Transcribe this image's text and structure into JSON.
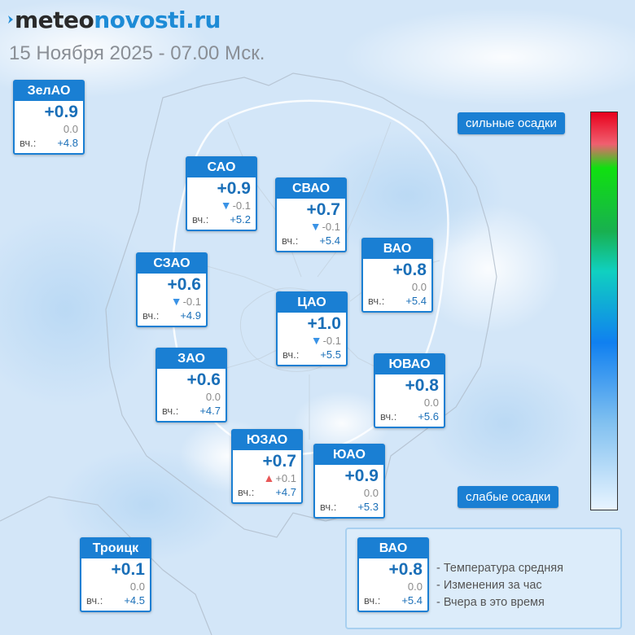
{
  "header": {
    "logo_part1": "meteo",
    "logo_part2": "novosti.ru",
    "date": "15 Ноября 2025 - 07.00 Мск."
  },
  "yesterday_prefix": "вч.:",
  "districts": [
    {
      "id": "zelao",
      "name": "ЗелАО",
      "temp": "+0.9",
      "change": "0.0",
      "trend": "none",
      "yesterday": "+4.8"
    },
    {
      "id": "sao",
      "name": "САО",
      "temp": "+0.9",
      "change": "-0.1",
      "trend": "down",
      "yesterday": "+5.2"
    },
    {
      "id": "svao",
      "name": "СВАО",
      "temp": "+0.7",
      "change": "-0.1",
      "trend": "down",
      "yesterday": "+5.4"
    },
    {
      "id": "vao",
      "name": "ВАО",
      "temp": "+0.8",
      "change": "0.0",
      "trend": "none",
      "yesterday": "+5.4"
    },
    {
      "id": "szao",
      "name": "СЗАО",
      "temp": "+0.6",
      "change": "-0.1",
      "trend": "down",
      "yesterday": "+4.9"
    },
    {
      "id": "cao",
      "name": "ЦАО",
      "temp": "+1.0",
      "change": "-0.1",
      "trend": "down",
      "yesterday": "+5.5"
    },
    {
      "id": "zao",
      "name": "ЗАО",
      "temp": "+0.6",
      "change": "0.0",
      "trend": "none",
      "yesterday": "+4.7"
    },
    {
      "id": "yuvao",
      "name": "ЮВАО",
      "temp": "+0.8",
      "change": "0.0",
      "trend": "none",
      "yesterday": "+5.6"
    },
    {
      "id": "yuzao",
      "name": "ЮЗАО",
      "temp": "+0.7",
      "change": "+0.1",
      "trend": "up",
      "yesterday": "+4.7"
    },
    {
      "id": "yuao",
      "name": "ЮАО",
      "temp": "+0.9",
      "change": "0.0",
      "trend": "none",
      "yesterday": "+5.3"
    },
    {
      "id": "troitsk",
      "name": "Троицк",
      "temp": "+0.1",
      "change": "0.0",
      "trend": "none",
      "yesterday": "+4.5"
    }
  ],
  "precip_scale": {
    "top_label": "сильные осадки",
    "bottom_label": "слабые осадки"
  },
  "legend": {
    "sample": {
      "name": "ВАО",
      "temp": "+0.8",
      "change": "0.0",
      "trend": "none",
      "yesterday": "+5.4"
    },
    "items": [
      "- Температура средняя",
      "- Изменения за час",
      "- Вчера в это время"
    ]
  },
  "colors": {
    "accent": "#1a7fd3",
    "trend_down": "#3a93e6",
    "trend_up": "#e85858"
  }
}
